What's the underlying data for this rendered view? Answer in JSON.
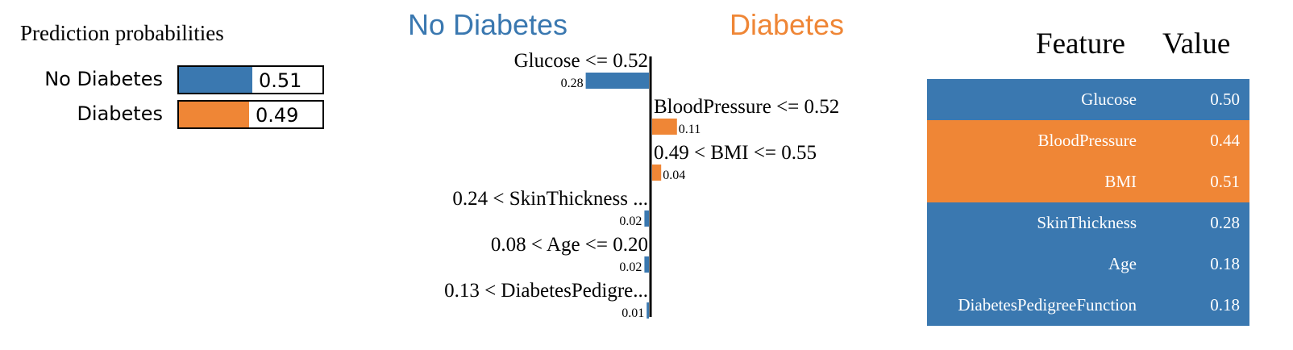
{
  "probabilities": {
    "title": "Prediction probabilities",
    "rows": [
      {
        "label": "No Diabetes",
        "value": 0.51,
        "display": "0.51",
        "color": "#3a78b0"
      },
      {
        "label": "Diabetes",
        "value": 0.49,
        "display": "0.49",
        "color": "#ef8636"
      }
    ]
  },
  "chart_data": {
    "type": "bar",
    "class_negative": {
      "label": "No Diabetes",
      "color": "#3a78b0"
    },
    "class_positive": {
      "label": "Diabetes",
      "color": "#ef8636"
    },
    "features": [
      {
        "label": "Glucose <= 0.52",
        "value": -0.28,
        "display": "0.28"
      },
      {
        "label": "BloodPressure <= 0.52",
        "value": 0.11,
        "display": "0.11"
      },
      {
        "label": "0.49 < BMI <= 0.55",
        "value": 0.04,
        "display": "0.04"
      },
      {
        "label": "0.24 < SkinThickness ...",
        "value": -0.02,
        "display": "0.02"
      },
      {
        "label": "0.08 < Age <= 0.20",
        "value": -0.02,
        "display": "0.02"
      },
      {
        "label": "0.13 < DiabetesPedigre...",
        "value": -0.01,
        "display": "0.01"
      }
    ]
  },
  "table": {
    "header_feature": "Feature",
    "header_value": "Value",
    "rows": [
      {
        "feature": "Glucose",
        "value": "0.50",
        "color": "#3a78b0"
      },
      {
        "feature": "BloodPressure",
        "value": "0.44",
        "color": "#ef8636"
      },
      {
        "feature": "BMI",
        "value": "0.51",
        "color": "#ef8636"
      },
      {
        "feature": "SkinThickness",
        "value": "0.28",
        "color": "#3a78b0"
      },
      {
        "feature": "Age",
        "value": "0.18",
        "color": "#3a78b0"
      },
      {
        "feature": "DiabetesPedigreeFunction",
        "value": "0.18",
        "color": "#3a78b0"
      }
    ]
  }
}
